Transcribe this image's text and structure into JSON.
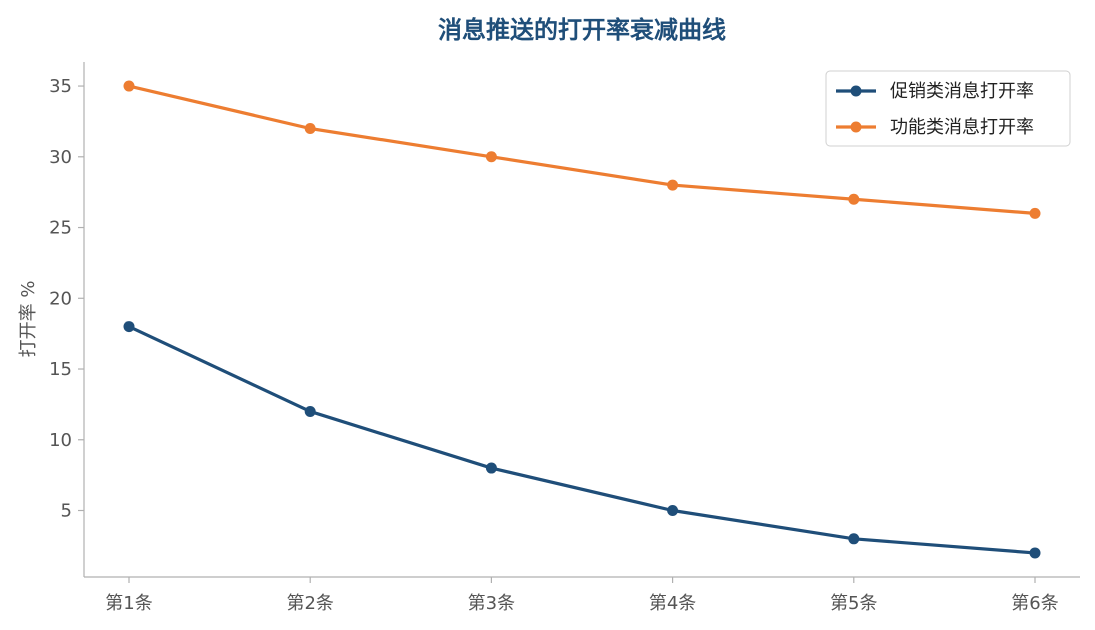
{
  "chart_data": {
    "type": "line",
    "title": "消息推送的打开率衰减曲线",
    "xlabel": "",
    "ylabel": "打开率 %",
    "categories": [
      "第1条",
      "第2条",
      "第3条",
      "第4条",
      "第5条",
      "第6条"
    ],
    "yticks": [
      5,
      10,
      15,
      20,
      25,
      30,
      35
    ],
    "ylim": [
      0.3,
      36.7
    ],
    "grid": false,
    "legend_position": "top-right",
    "series": [
      {
        "name": "促销类消息打开率",
        "values": [
          18,
          12,
          8,
          5,
          3,
          2
        ],
        "color": "#1f4e79"
      },
      {
        "name": "功能类消息打开率",
        "values": [
          35,
          32,
          30,
          28,
          27,
          26
        ],
        "color": "#ed7d31"
      }
    ],
    "colors": {
      "title": "#1f4e79",
      "axis": "#b0b0b0",
      "tick_text": "#555555"
    }
  }
}
